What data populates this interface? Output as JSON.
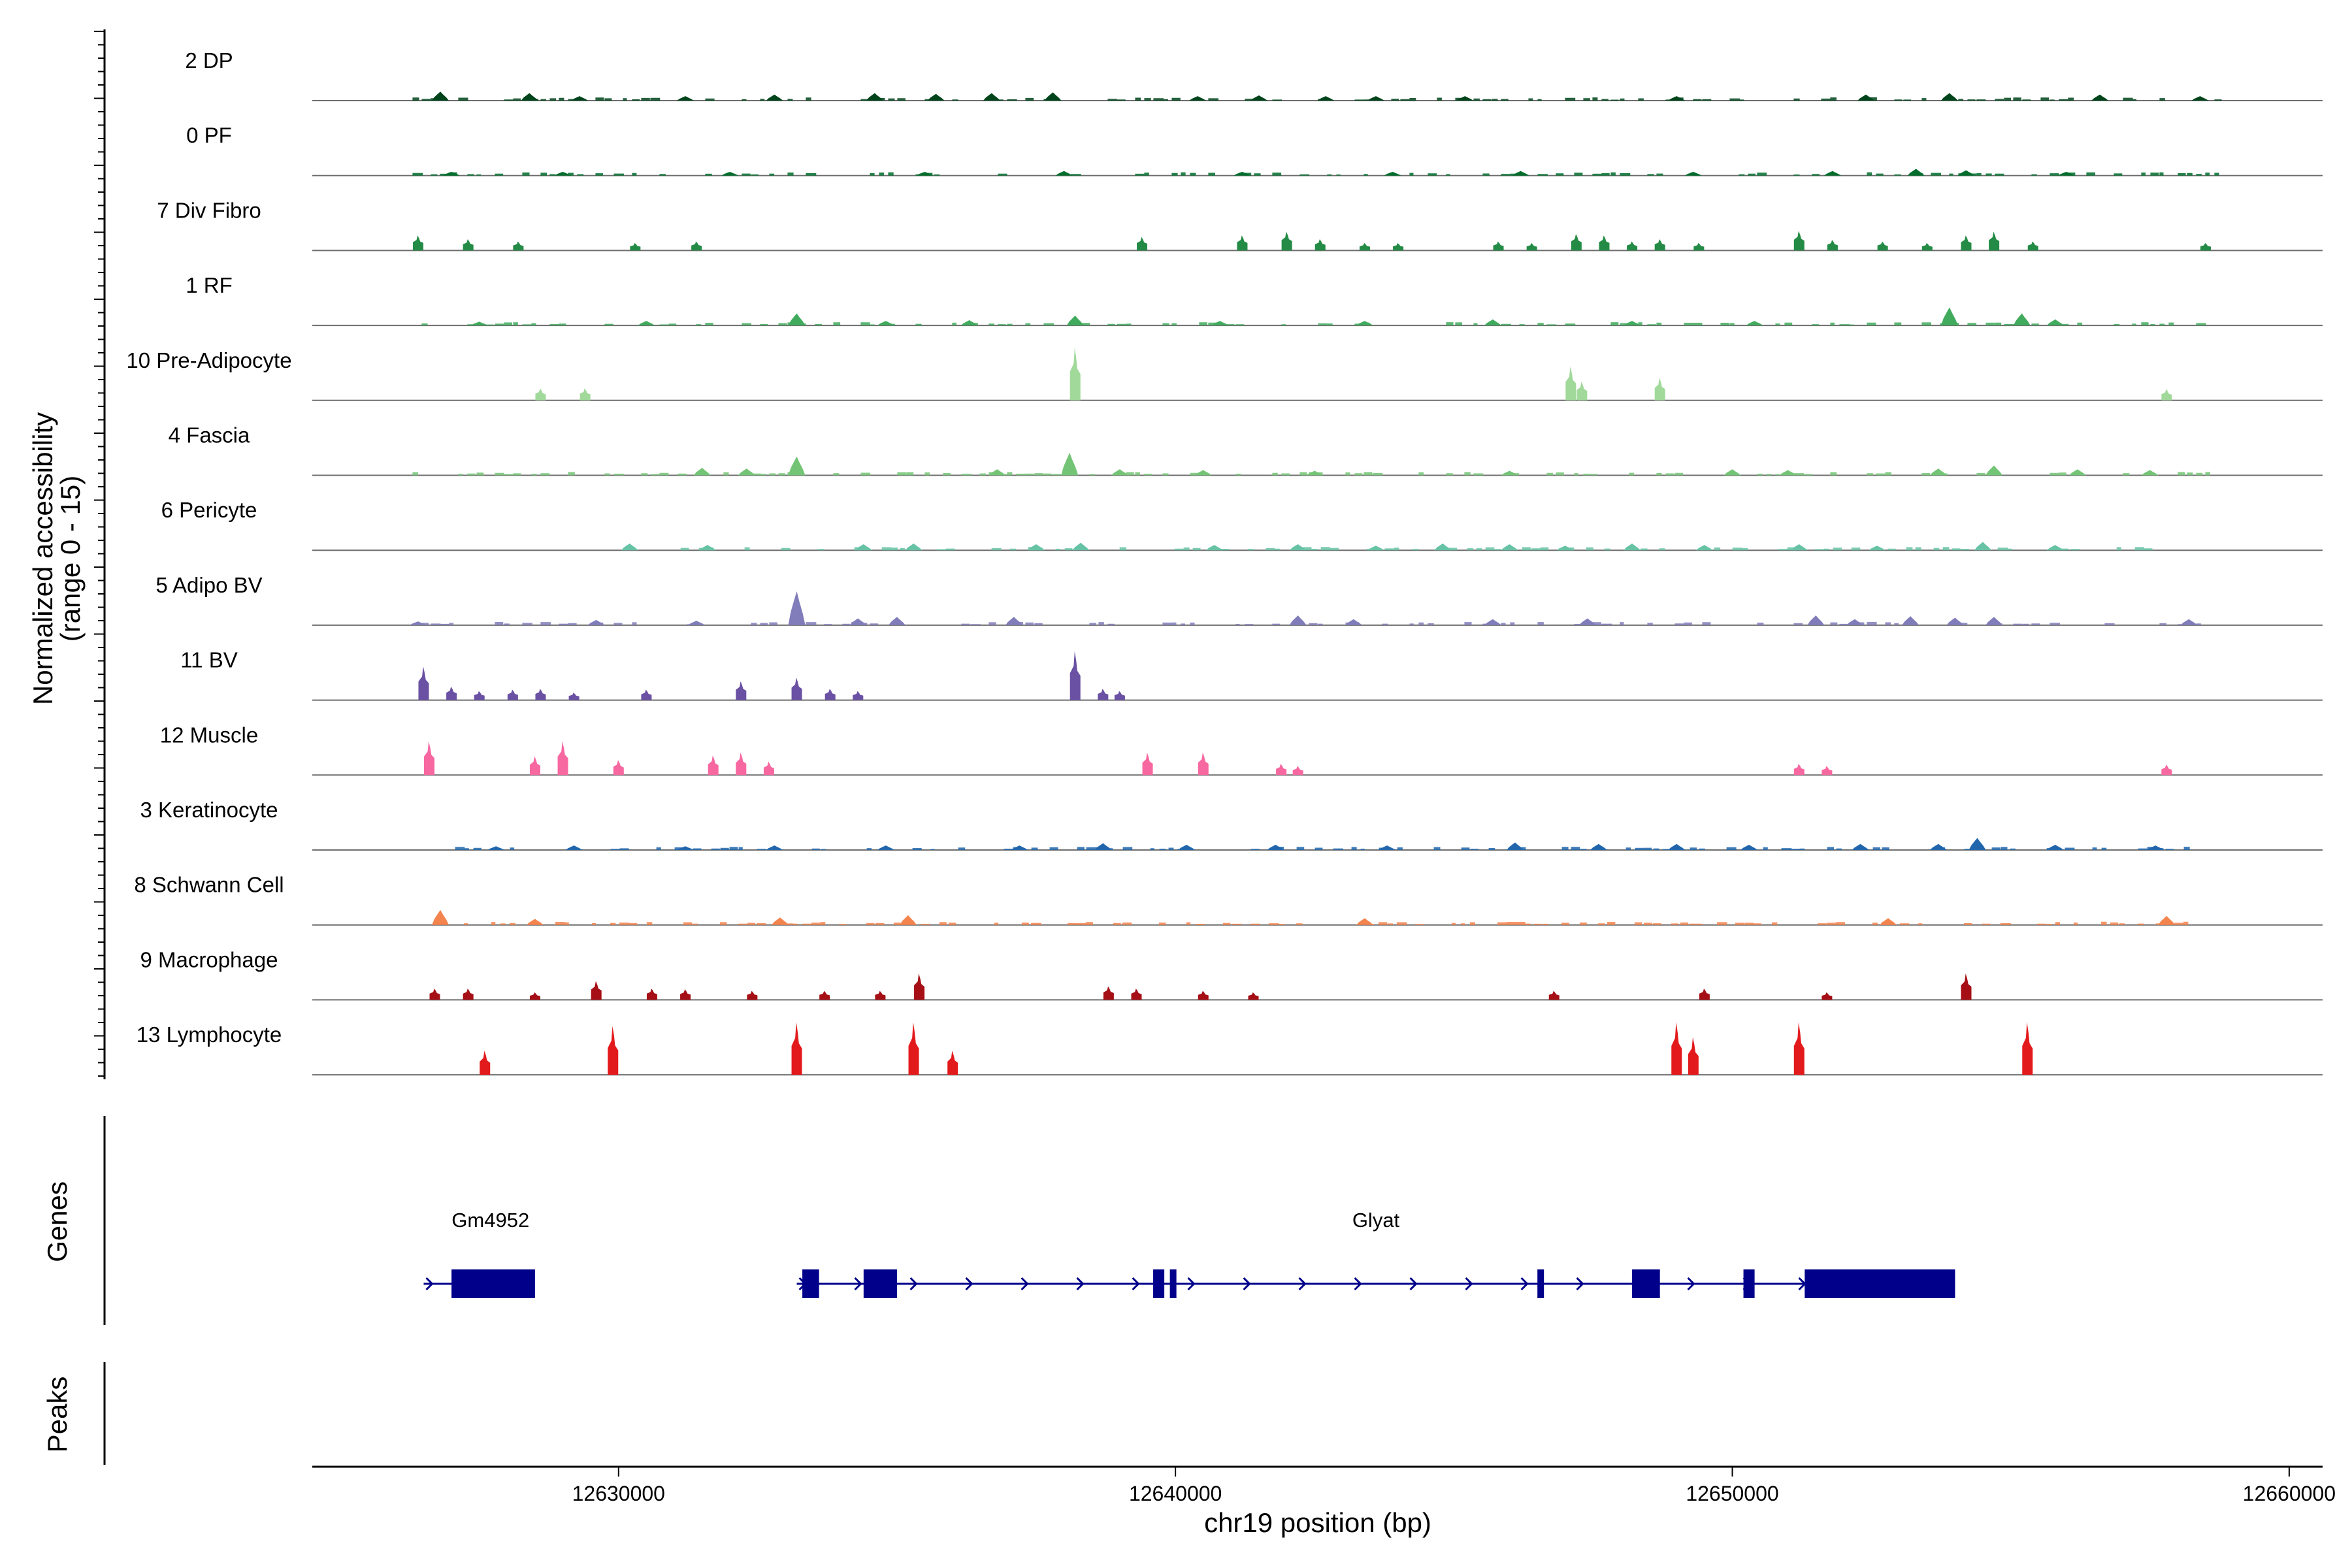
{
  "chart_data": {
    "type": "area",
    "title": "",
    "xlabel": "chr19 position (bp)",
    "ylabel_line1": "Normalized accessibility",
    "ylabel_line2": "(range 0 - 15)",
    "y_range": [
      0,
      15
    ],
    "x_range": [
      12624500,
      12660600
    ],
    "x_ticks": [
      {
        "value": 12630000,
        "label": "12630000"
      },
      {
        "value": 12640000,
        "label": "12640000"
      },
      {
        "value": 12650000,
        "label": "12650000"
      },
      {
        "value": 12660000,
        "label": "12660000"
      }
    ],
    "tracks": [
      {
        "name": "2 DP",
        "color": "#00441b",
        "style": "broad",
        "extent": [
          12626300,
          12658800
        ],
        "peaks": [
          [
            12626800,
            1.2
          ],
          [
            12628400,
            1.0
          ],
          [
            12629300,
            0.6
          ],
          [
            12631200,
            0.6
          ],
          [
            12632800,
            0.8
          ],
          [
            12634600,
            1.0
          ],
          [
            12635700,
            0.9
          ],
          [
            12636700,
            1.0
          ],
          [
            12637800,
            1.1
          ],
          [
            12640400,
            0.6
          ],
          [
            12641500,
            0.7
          ],
          [
            12642700,
            0.6
          ],
          [
            12643600,
            0.6
          ],
          [
            12645200,
            0.6
          ],
          [
            12649000,
            0.6
          ],
          [
            12652400,
            0.8
          ],
          [
            12653900,
            1.0
          ],
          [
            12656600,
            0.8
          ],
          [
            12658400,
            0.6
          ]
        ]
      },
      {
        "name": "0 PF",
        "color": "#006d2c",
        "style": "broad",
        "extent": [
          12626300,
          12658800
        ],
        "peaks": [
          [
            12627000,
            0.5
          ],
          [
            12629000,
            0.5
          ],
          [
            12632000,
            0.5
          ],
          [
            12635500,
            0.5
          ],
          [
            12638000,
            0.6
          ],
          [
            12641200,
            0.5
          ],
          [
            12643900,
            0.5
          ],
          [
            12646200,
            0.6
          ],
          [
            12649300,
            0.5
          ],
          [
            12651800,
            0.6
          ],
          [
            12653300,
            0.9
          ],
          [
            12654200,
            0.7
          ],
          [
            12656000,
            0.5
          ]
        ]
      },
      {
        "name": "7 Div Fibro",
        "color": "#238b45",
        "style": "spiky",
        "extent": [
          12626300,
          12658800
        ],
        "peaks": [
          [
            12626400,
            2.0
          ],
          [
            12627300,
            1.5
          ],
          [
            12628200,
            1.2
          ],
          [
            12630300,
            1.0
          ],
          [
            12631400,
            1.2
          ],
          [
            12639400,
            1.8
          ],
          [
            12641200,
            2.0
          ],
          [
            12642000,
            2.5
          ],
          [
            12642600,
            1.5
          ],
          [
            12643400,
            1.0
          ],
          [
            12644000,
            1.0
          ],
          [
            12645800,
            1.2
          ],
          [
            12646400,
            1.0
          ],
          [
            12647200,
            2.2
          ],
          [
            12647700,
            2.0
          ],
          [
            12648200,
            1.2
          ],
          [
            12648700,
            1.5
          ],
          [
            12649400,
            1.0
          ],
          [
            12651200,
            2.6
          ],
          [
            12651800,
            1.4
          ],
          [
            12652700,
            1.2
          ],
          [
            12653500,
            1.0
          ],
          [
            12654200,
            2.0
          ],
          [
            12654700,
            2.5
          ],
          [
            12655400,
            1.2
          ],
          [
            12658500,
            1.0
          ]
        ]
      },
      {
        "name": "1 RF",
        "color": "#41ab5d",
        "style": "broad",
        "extent": [
          12626300,
          12658800
        ],
        "peaks": [
          [
            12627500,
            0.5
          ],
          [
            12630500,
            0.6
          ],
          [
            12633200,
            1.6
          ],
          [
            12634800,
            0.6
          ],
          [
            12636300,
            0.7
          ],
          [
            12638200,
            1.3
          ],
          [
            12640800,
            0.6
          ],
          [
            12643400,
            0.6
          ],
          [
            12645700,
            0.8
          ],
          [
            12648200,
            0.6
          ],
          [
            12650400,
            0.6
          ],
          [
            12653900,
            2.4
          ],
          [
            12655200,
            1.6
          ],
          [
            12655800,
            0.8
          ]
        ]
      },
      {
        "name": "10 Pre-Adipocyte",
        "color": "#a1d99b",
        "style": "spiky",
        "extent": [
          12628500,
          12658700
        ],
        "peaks": [
          [
            12628600,
            1.6
          ],
          [
            12629400,
            1.6
          ],
          [
            12638200,
            7.0
          ],
          [
            12647100,
            4.5
          ],
          [
            12647300,
            2.5
          ],
          [
            12648700,
            3.0
          ],
          [
            12657800,
            1.5
          ]
        ]
      },
      {
        "name": "4 Fascia",
        "color": "#74c476",
        "style": "broad",
        "extent": [
          12626300,
          12658800
        ],
        "peaks": [
          [
            12631500,
            1.0
          ],
          [
            12632300,
            0.9
          ],
          [
            12633200,
            2.5
          ],
          [
            12636800,
            0.8
          ],
          [
            12638100,
            3.0
          ],
          [
            12639000,
            0.8
          ],
          [
            12640500,
            0.7
          ],
          [
            12642500,
            0.6
          ],
          [
            12646000,
            0.6
          ],
          [
            12650000,
            0.8
          ],
          [
            12651000,
            0.7
          ],
          [
            12653700,
            0.9
          ],
          [
            12654700,
            1.3
          ],
          [
            12656200,
            0.8
          ],
          [
            12657500,
            0.7
          ]
        ]
      },
      {
        "name": "6 Pericyte",
        "color": "#66c2a4",
        "style": "broad",
        "extent": [
          12629800,
          12658000
        ],
        "peaks": [
          [
            12630200,
            0.9
          ],
          [
            12631600,
            0.7
          ],
          [
            12634400,
            0.8
          ],
          [
            12635300,
            0.9
          ],
          [
            12637500,
            0.8
          ],
          [
            12638300,
            1.0
          ],
          [
            12640700,
            0.7
          ],
          [
            12642200,
            0.8
          ],
          [
            12643600,
            0.6
          ],
          [
            12644800,
            0.9
          ],
          [
            12646000,
            0.8
          ],
          [
            12647000,
            0.6
          ],
          [
            12648200,
            0.9
          ],
          [
            12649500,
            0.7
          ],
          [
            12651200,
            0.8
          ],
          [
            12652600,
            0.6
          ],
          [
            12654500,
            1.1
          ],
          [
            12655800,
            0.7
          ]
        ]
      },
      {
        "name": "5 Adipo BV",
        "color": "#807dba",
        "style": "broad",
        "extent": [
          12626300,
          12658500
        ],
        "peaks": [
          [
            12626400,
            0.5
          ],
          [
            12629600,
            0.7
          ],
          [
            12631400,
            0.6
          ],
          [
            12633200,
            4.5
          ],
          [
            12634300,
            0.9
          ],
          [
            12635000,
            1.1
          ],
          [
            12637100,
            1.1
          ],
          [
            12642200,
            1.3
          ],
          [
            12643200,
            0.8
          ],
          [
            12645700,
            0.8
          ],
          [
            12647400,
            0.9
          ],
          [
            12651500,
            1.3
          ],
          [
            12652200,
            0.8
          ],
          [
            12653200,
            1.2
          ],
          [
            12654000,
            1.0
          ],
          [
            12654700,
            1.1
          ],
          [
            12658200,
            0.8
          ]
        ]
      },
      {
        "name": "11 BV",
        "color": "#6a51a3",
        "style": "spiky",
        "extent": [
          12626300,
          12639300
        ],
        "peaks": [
          [
            12626500,
            4.5
          ],
          [
            12627000,
            1.8
          ],
          [
            12627500,
            1.2
          ],
          [
            12628100,
            1.4
          ],
          [
            12628600,
            1.5
          ],
          [
            12629200,
            1.0
          ],
          [
            12630500,
            1.4
          ],
          [
            12632200,
            2.5
          ],
          [
            12633200,
            3.0
          ],
          [
            12633800,
            1.5
          ],
          [
            12634300,
            1.2
          ],
          [
            12638200,
            6.5
          ],
          [
            12638700,
            1.5
          ],
          [
            12639000,
            1.2
          ]
        ]
      },
      {
        "name": "12 Muscle",
        "color": "#f768a1",
        "style": "spiky",
        "extent": [
          12626400,
          12658200
        ],
        "peaks": [
          [
            12626600,
            4.5
          ],
          [
            12628500,
            2.5
          ],
          [
            12629000,
            4.5
          ],
          [
            12630000,
            2.0
          ],
          [
            12631700,
            2.6
          ],
          [
            12632200,
            3.0
          ],
          [
            12632700,
            1.8
          ],
          [
            12639500,
            3.0
          ],
          [
            12640500,
            3.0
          ],
          [
            12641900,
            1.5
          ],
          [
            12642200,
            1.2
          ],
          [
            12651200,
            1.5
          ],
          [
            12651700,
            1.2
          ],
          [
            12657800,
            1.4
          ]
        ]
      },
      {
        "name": "3 Keratinocyte",
        "color": "#2166ac",
        "style": "broad",
        "extent": [
          12626900,
          12658800
        ],
        "peaks": [
          [
            12627800,
            0.5
          ],
          [
            12629200,
            0.6
          ],
          [
            12631200,
            0.5
          ],
          [
            12632800,
            0.6
          ],
          [
            12634800,
            0.6
          ],
          [
            12637200,
            0.6
          ],
          [
            12638700,
            0.9
          ],
          [
            12640200,
            0.7
          ],
          [
            12641800,
            0.7
          ],
          [
            12643800,
            0.6
          ],
          [
            12646100,
            1.0
          ],
          [
            12647600,
            0.8
          ],
          [
            12649000,
            0.8
          ],
          [
            12650300,
            0.7
          ],
          [
            12652300,
            0.8
          ],
          [
            12653700,
            0.8
          ],
          [
            12654400,
            1.6
          ],
          [
            12655800,
            0.7
          ],
          [
            12657600,
            0.6
          ]
        ]
      },
      {
        "name": "8 Schwann Cell",
        "color": "#f4844e",
        "style": "broad",
        "extent": [
          12626400,
          12658200
        ],
        "peaks": [
          [
            12626800,
            2.0
          ],
          [
            12628500,
            0.8
          ],
          [
            12632900,
            1.0
          ],
          [
            12635200,
            1.3
          ],
          [
            12643400,
            0.9
          ],
          [
            12652800,
            0.9
          ],
          [
            12657800,
            1.2
          ]
        ]
      },
      {
        "name": "9 Macrophage",
        "color": "#a50f15",
        "style": "spiky",
        "extent": [
          12626400,
          12654600
        ],
        "peaks": [
          [
            12626700,
            1.5
          ],
          [
            12627300,
            1.5
          ],
          [
            12628500,
            1.0
          ],
          [
            12629600,
            2.5
          ],
          [
            12630600,
            1.5
          ],
          [
            12631200,
            1.4
          ],
          [
            12632400,
            1.2
          ],
          [
            12633700,
            1.2
          ],
          [
            12634700,
            1.2
          ],
          [
            12635400,
            3.5
          ],
          [
            12638800,
            1.8
          ],
          [
            12639300,
            1.5
          ],
          [
            12640500,
            1.2
          ],
          [
            12641400,
            1.0
          ],
          [
            12646800,
            1.2
          ],
          [
            12649500,
            1.5
          ],
          [
            12651700,
            1.0
          ],
          [
            12654200,
            3.5
          ]
        ]
      },
      {
        "name": "13 Lymphocyte",
        "color": "#e31a1c",
        "style": "spiky",
        "extent": [
          12627500,
          12655600
        ],
        "peaks": [
          [
            12627600,
            3.2
          ],
          [
            12629900,
            6.5
          ],
          [
            12633200,
            7.0
          ],
          [
            12635300,
            7.0
          ],
          [
            12636000,
            3.2
          ],
          [
            12649000,
            7.0
          ],
          [
            12649300,
            5.0
          ],
          [
            12651200,
            7.0
          ],
          [
            12655300,
            7.0
          ]
        ]
      }
    ],
    "genes_track_label": "Genes",
    "peaks_track_label": "Peaks",
    "genes": [
      {
        "name": "Gm4952",
        "start": 12626500,
        "end": 12628500,
        "strand": "+",
        "color": "#00008b",
        "exons": [
          [
            12627000,
            12628500
          ]
        ]
      },
      {
        "name": "Glyat",
        "start": 12633200,
        "end": 12654000,
        "strand": "+",
        "color": "#00008b",
        "exons": [
          [
            12633300,
            12633600
          ],
          [
            12634400,
            12635000
          ],
          [
            12639600,
            12639800
          ],
          [
            12639900,
            12640000
          ],
          [
            12646500,
            12646600
          ],
          [
            12648200,
            12648700
          ],
          [
            12650200,
            12650400
          ],
          [
            12651300,
            12654000
          ]
        ]
      }
    ]
  }
}
